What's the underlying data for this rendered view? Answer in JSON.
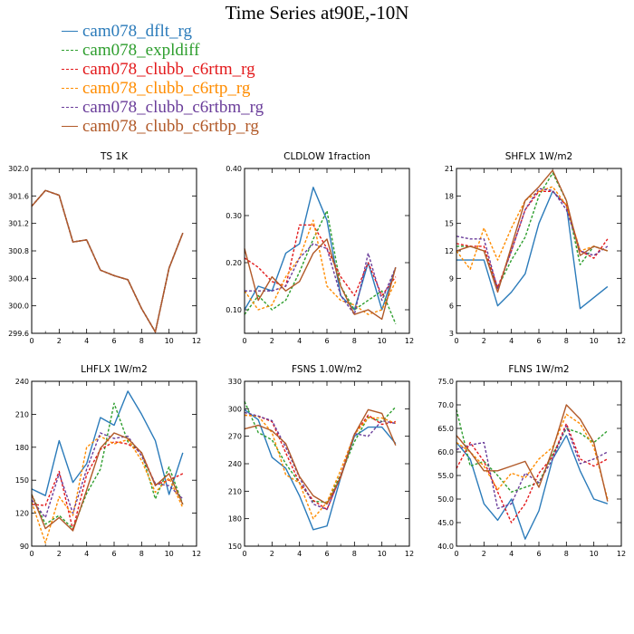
{
  "figure": {
    "title": "Time Series at90E,-10N",
    "legend": [
      {
        "label": "cam078_dflt_rg",
        "color": "#2b7bba",
        "dash": "solid"
      },
      {
        "label": "cam078_expldiff",
        "color": "#2e9e2e",
        "dash": "dashed"
      },
      {
        "label": "cam078_clubb_c6rtm_rg",
        "color": "#e31a1c",
        "dash": "dashed"
      },
      {
        "label": "cam078_clubb_c6rtp_rg",
        "color": "#ff8c00",
        "dash": "dashed"
      },
      {
        "label": "cam078_clubb_c6rtbm_rg",
        "color": "#6a3d9a",
        "dash": "dashed"
      },
      {
        "label": "cam078_clubb_c6rtbp_rg",
        "color": "#b15928",
        "dash": "solid"
      }
    ]
  },
  "chart_data": [
    {
      "type": "line",
      "title": "TS 1K",
      "x": [
        0,
        1,
        2,
        3,
        4,
        5,
        6,
        7,
        8,
        9,
        10,
        11
      ],
      "xlim": [
        0,
        12
      ],
      "xticks": [
        "0",
        "2",
        "4",
        "6",
        "8",
        "10",
        "12"
      ],
      "ylim": [
        299.6,
        302.0
      ],
      "yticks": [
        "299.6",
        "300.0",
        "300.4",
        "300.8",
        "301.2",
        "301.6",
        "302.0"
      ],
      "series": [
        {
          "name": "cam078_dflt_rg",
          "values": [
            301.45,
            301.68,
            301.61,
            300.93,
            300.96,
            300.52,
            300.44,
            300.38,
            299.96,
            299.62,
            300.55,
            301.06
          ]
        },
        {
          "name": "cam078_expldiff",
          "values": [
            301.45,
            301.68,
            301.61,
            300.93,
            300.96,
            300.52,
            300.44,
            300.38,
            299.96,
            299.62,
            300.55,
            301.06
          ]
        },
        {
          "name": "cam078_clubb_c6rtm_rg",
          "values": [
            301.45,
            301.68,
            301.61,
            300.93,
            300.96,
            300.52,
            300.44,
            300.38,
            299.96,
            299.62,
            300.55,
            301.06
          ]
        },
        {
          "name": "cam078_clubb_c6rtp_rg",
          "values": [
            301.45,
            301.68,
            301.61,
            300.93,
            300.96,
            300.52,
            300.44,
            300.38,
            299.96,
            299.62,
            300.55,
            301.06
          ]
        },
        {
          "name": "cam078_clubb_c6rtbm_rg",
          "values": [
            301.45,
            301.68,
            301.61,
            300.93,
            300.96,
            300.52,
            300.44,
            300.38,
            299.96,
            299.62,
            300.55,
            301.06
          ]
        },
        {
          "name": "cam078_clubb_c6rtbp_rg",
          "values": [
            301.45,
            301.68,
            301.61,
            300.93,
            300.96,
            300.52,
            300.44,
            300.38,
            299.96,
            299.62,
            300.55,
            301.06
          ]
        }
      ]
    },
    {
      "type": "line",
      "title": "CLDLOW 1fraction",
      "x": [
        0,
        1,
        2,
        3,
        4,
        5,
        6,
        7,
        8,
        9,
        10,
        11
      ],
      "xlim": [
        0,
        12
      ],
      "xticks": [
        "0",
        "2",
        "4",
        "6",
        "8",
        "10",
        "12"
      ],
      "ylim": [
        0.05,
        0.4
      ],
      "yticks": [
        "0.10",
        "0.20",
        "0.30",
        "0.40"
      ],
      "series": [
        {
          "name": "cam078_dflt_rg",
          "values": [
            0.1,
            0.15,
            0.14,
            0.22,
            0.24,
            0.36,
            0.29,
            0.13,
            0.1,
            0.2,
            0.1,
            0.19
          ]
        },
        {
          "name": "cam078_expldiff",
          "values": [
            0.09,
            0.13,
            0.1,
            0.12,
            0.18,
            0.25,
            0.31,
            0.15,
            0.1,
            0.12,
            0.14,
            0.07
          ]
        },
        {
          "name": "cam078_clubb_c6rtm_rg",
          "values": [
            0.21,
            0.19,
            0.16,
            0.15,
            0.28,
            0.28,
            0.23,
            0.17,
            0.13,
            0.2,
            0.13,
            0.17
          ]
        },
        {
          "name": "cam078_clubb_c6rtp_rg",
          "values": [
            0.14,
            0.1,
            0.11,
            0.17,
            0.21,
            0.29,
            0.15,
            0.12,
            0.11,
            0.09,
            0.1,
            0.16
          ]
        },
        {
          "name": "cam078_clubb_c6rtbm_rg",
          "values": [
            0.14,
            0.14,
            0.14,
            0.15,
            0.21,
            0.24,
            0.23,
            0.13,
            0.09,
            0.22,
            0.12,
            0.19
          ]
        },
        {
          "name": "cam078_clubb_c6rtbp_rg",
          "values": [
            0.23,
            0.12,
            0.17,
            0.14,
            0.16,
            0.22,
            0.25,
            0.15,
            0.09,
            0.1,
            0.08,
            0.19
          ]
        }
      ]
    },
    {
      "type": "line",
      "title": "SHFLX 1W/m2",
      "x": [
        0,
        1,
        2,
        3,
        4,
        5,
        6,
        7,
        8,
        9,
        10,
        11
      ],
      "xlim": [
        0,
        12
      ],
      "xticks": [
        "0",
        "2",
        "4",
        "6",
        "8",
        "10",
        "12"
      ],
      "ylim": [
        3,
        21
      ],
      "yticks": [
        "3",
        "6",
        "9",
        "12",
        "15",
        "18",
        "21"
      ],
      "series": [
        {
          "name": "cam078_dflt_rg",
          "values": [
            11.0,
            11.0,
            11.0,
            6.0,
            7.5,
            9.5,
            15.0,
            18.5,
            17.0,
            5.7,
            6.9,
            8.1
          ]
        },
        {
          "name": "cam078_expldiff",
          "values": [
            12.5,
            12.5,
            12.0,
            8.0,
            11.0,
            13.5,
            18.0,
            20.5,
            17.5,
            10.5,
            12.5,
            12.0
          ]
        },
        {
          "name": "cam078_clubb_c6rtm_rg",
          "values": [
            12.8,
            12.5,
            12.5,
            8.0,
            12.0,
            16.5,
            18.5,
            18.5,
            17.0,
            12.0,
            11.2,
            13.3
          ]
        },
        {
          "name": "cam078_clubb_c6rtp_rg",
          "values": [
            12.0,
            10.0,
            14.5,
            11.0,
            14.5,
            17.5,
            18.5,
            19.0,
            17.0,
            12.0,
            12.5,
            12.0
          ]
        },
        {
          "name": "cam078_clubb_c6rtbm_rg",
          "values": [
            13.6,
            13.3,
            13.3,
            7.8,
            12.0,
            16.5,
            18.8,
            18.6,
            16.5,
            12.0,
            11.5,
            12.5
          ]
        },
        {
          "name": "cam078_clubb_c6rtbp_rg",
          "values": [
            12.0,
            12.5,
            12.0,
            7.5,
            12.5,
            17.5,
            19.0,
            20.8,
            17.5,
            11.5,
            12.5,
            12.0
          ]
        }
      ]
    },
    {
      "type": "line",
      "title": "LHFLX 1W/m2",
      "x": [
        0,
        1,
        2,
        3,
        4,
        5,
        6,
        7,
        8,
        9,
        10,
        11
      ],
      "xlim": [
        0,
        12
      ],
      "xticks": [
        "0",
        "2",
        "4",
        "6",
        "8",
        "10",
        "12"
      ],
      "ylim": [
        90,
        240
      ],
      "yticks": [
        "90",
        "120",
        "150",
        "180",
        "210",
        "240"
      ],
      "series": [
        {
          "name": "cam078_dflt_rg",
          "values": [
            142,
            136,
            186,
            148,
            165,
            207,
            200,
            231,
            210,
            186,
            137,
            175
          ]
        },
        {
          "name": "cam078_expldiff",
          "values": [
            137,
            110,
            118,
            106,
            138,
            160,
            220,
            185,
            175,
            133,
            162,
            128
          ]
        },
        {
          "name": "cam078_clubb_c6rtm_rg",
          "values": [
            128,
            127,
            158,
            105,
            155,
            178,
            185,
            183,
            175,
            146,
            150,
            156
          ]
        },
        {
          "name": "cam078_clubb_c6rtp_rg",
          "values": [
            130,
            93,
            135,
            118,
            180,
            190,
            183,
            187,
            168,
            139,
            152,
            125
          ]
        },
        {
          "name": "cam078_clubb_c6rtbm_rg",
          "values": [
            132,
            116,
            156,
            120,
            160,
            193,
            188,
            190,
            172,
            147,
            145,
            133
          ]
        },
        {
          "name": "cam078_clubb_c6rtbp_rg",
          "values": [
            137,
            106,
            116,
            104,
            141,
            179,
            193,
            188,
            175,
            145,
            156,
            128
          ]
        }
      ]
    },
    {
      "type": "line",
      "title": "FSNS 1.0W/m2",
      "x": [
        0,
        1,
        2,
        3,
        4,
        5,
        6,
        7,
        8,
        9,
        10,
        11
      ],
      "xlim": [
        0,
        12
      ],
      "xticks": [
        "0",
        "2",
        "4",
        "6",
        "8",
        "10",
        "12"
      ],
      "ylim": [
        150,
        330
      ],
      "yticks": [
        "150",
        "180",
        "210",
        "240",
        "270",
        "300",
        "330"
      ],
      "series": [
        {
          "name": "cam078_dflt_rg",
          "values": [
            299,
            288,
            247,
            235,
            205,
            168,
            172,
            225,
            270,
            280,
            280,
            262
          ]
        },
        {
          "name": "cam078_expldiff",
          "values": [
            308,
            274,
            266,
            240,
            219,
            199,
            198,
            228,
            264,
            291,
            286,
            302
          ]
        },
        {
          "name": "cam078_clubb_c6rtm_rg",
          "values": [
            293,
            292,
            286,
            252,
            219,
            200,
            190,
            227,
            272,
            293,
            283,
            286
          ]
        },
        {
          "name": "cam078_clubb_c6rtp_rg",
          "values": [
            293,
            292,
            274,
            228,
            219,
            180,
            198,
            233,
            272,
            290,
            290,
            284
          ]
        },
        {
          "name": "cam078_clubb_c6rtbm_rg",
          "values": [
            296,
            292,
            287,
            258,
            225,
            196,
            190,
            226,
            273,
            270,
            287,
            284
          ]
        },
        {
          "name": "cam078_clubb_c6rtbp_rg",
          "values": [
            278,
            282,
            276,
            262,
            226,
            205,
            196,
            225,
            272,
            299,
            295,
            260
          ]
        }
      ]
    },
    {
      "type": "line",
      "title": "FLNS 1W/m2",
      "x": [
        0,
        1,
        2,
        3,
        4,
        5,
        6,
        7,
        8,
        9,
        10,
        11
      ],
      "xlim": [
        0,
        12
      ],
      "xticks": [
        "0",
        "2",
        "4",
        "6",
        "8",
        "10",
        "12"
      ],
      "ylim": [
        40.0,
        75.0
      ],
      "yticks": [
        "40.0",
        "45.0",
        "50.0",
        "55.0",
        "60.0",
        "65.0",
        "70.0",
        "75.0"
      ],
      "series": [
        {
          "name": "cam078_dflt_rg",
          "values": [
            62.0,
            58.5,
            49.0,
            45.5,
            50.0,
            41.5,
            47.5,
            58.5,
            63.5,
            56.0,
            50.0,
            49.0
          ]
        },
        {
          "name": "cam078_expldiff",
          "values": [
            69.0,
            57.0,
            58.0,
            55.0,
            51.5,
            52.5,
            53.5,
            59.5,
            65.0,
            64.0,
            62.0,
            64.5
          ]
        },
        {
          "name": "cam078_clubb_c6rtm_rg",
          "values": [
            56.5,
            62.0,
            58.0,
            51.5,
            45.0,
            49.0,
            55.5,
            59.0,
            66.0,
            58.5,
            57.0,
            58.5
          ]
        },
        {
          "name": "cam078_clubb_c6rtp_rg",
          "values": [
            62.0,
            60.0,
            57.0,
            52.0,
            55.5,
            54.5,
            58.5,
            61.0,
            68.0,
            66.0,
            61.0,
            50.0
          ]
        },
        {
          "name": "cam078_clubb_c6rtbm_rg",
          "values": [
            60.5,
            61.5,
            62.0,
            48.0,
            49.0,
            55.5,
            53.5,
            58.5,
            65.5,
            57.5,
            58.5,
            60.0
          ]
        },
        {
          "name": "cam078_clubb_c6rtbp_rg",
          "values": [
            63.5,
            60.0,
            56.0,
            56.0,
            57.0,
            58.0,
            52.5,
            60.5,
            70.0,
            67.0,
            62.0,
            49.5
          ]
        }
      ]
    }
  ]
}
